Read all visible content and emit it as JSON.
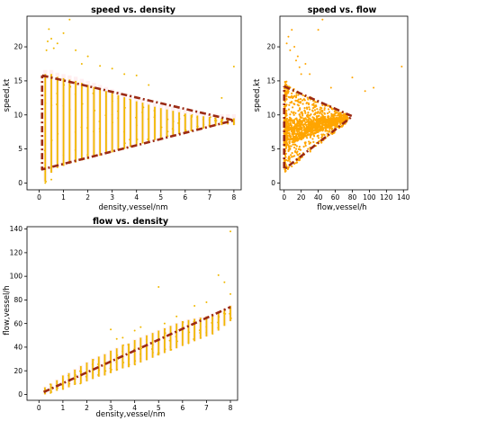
{
  "colors": {
    "points": "#f0b800",
    "points_fill": "#ffa500",
    "envelope": "#9b2a14",
    "halo": "#ffd0d8",
    "axis": "#000000"
  },
  "chart_data": [
    {
      "type": "scatter",
      "title": "speed vs. density",
      "xlabel": "density,vessel/nm",
      "ylabel": "speed,kt",
      "xlim": [
        -0.5,
        8.3
      ],
      "ylim": [
        -1,
        24.5
      ],
      "xticks": [
        0,
        1,
        2,
        3,
        4,
        5,
        6,
        7,
        8
      ],
      "yticks": [
        0,
        5,
        10,
        15,
        20
      ],
      "grid": false,
      "series": [
        {
          "points_description": "Vertical columns of points at every 0.25 density step from 0.25 to 8; wide spread at low density, narrowing toward ~9 kt at density 8",
          "column_ranges": [
            {
              "x": 0.25,
              "ymin": 0.2,
              "ymax": 16
            },
            {
              "x": 0.5,
              "ymin": 1.5,
              "ymax": 16
            },
            {
              "x": 0.75,
              "ymin": 2.2,
              "ymax": 15.6
            },
            {
              "x": 1,
              "ymin": 2.5,
              "ymax": 15.4
            },
            {
              "x": 1.25,
              "ymin": 2.8,
              "ymax": 15.2
            },
            {
              "x": 1.5,
              "ymin": 3,
              "ymax": 15
            },
            {
              "x": 1.75,
              "ymin": 3.3,
              "ymax": 14.7
            },
            {
              "x": 2,
              "ymin": 3.5,
              "ymax": 14.4
            },
            {
              "x": 2.25,
              "ymin": 3.8,
              "ymax": 14.1
            },
            {
              "x": 2.5,
              "ymin": 4,
              "ymax": 13.8
            },
            {
              "x": 2.75,
              "ymin": 4.3,
              "ymax": 13.5
            },
            {
              "x": 3,
              "ymin": 4.5,
              "ymax": 13.2
            },
            {
              "x": 3.25,
              "ymin": 4.8,
              "ymax": 12.9
            },
            {
              "x": 3.5,
              "ymin": 5,
              "ymax": 12.6
            },
            {
              "x": 3.75,
              "ymin": 5.3,
              "ymax": 12.3
            },
            {
              "x": 4,
              "ymin": 5.5,
              "ymax": 12
            },
            {
              "x": 4.25,
              "ymin": 5.8,
              "ymax": 11.8
            },
            {
              "x": 4.5,
              "ymin": 6,
              "ymax": 11.5
            },
            {
              "x": 4.75,
              "ymin": 6.3,
              "ymax": 11.2
            },
            {
              "x": 5,
              "ymin": 6.5,
              "ymax": 11
            },
            {
              "x": 5.25,
              "ymin": 6.8,
              "ymax": 10.8
            },
            {
              "x": 5.5,
              "ymin": 7,
              "ymax": 10.6
            },
            {
              "x": 5.75,
              "ymin": 7.2,
              "ymax": 10.4
            },
            {
              "x": 6,
              "ymin": 7.4,
              "ymax": 10.2
            },
            {
              "x": 6.25,
              "ymin": 7.6,
              "ymax": 10
            },
            {
              "x": 6.5,
              "ymin": 7.8,
              "ymax": 9.9
            },
            {
              "x": 6.75,
              "ymin": 8,
              "ymax": 9.8
            },
            {
              "x": 7,
              "ymin": 8.2,
              "ymax": 9.7
            },
            {
              "x": 7.25,
              "ymin": 8.4,
              "ymax": 9.6
            },
            {
              "x": 7.5,
              "ymin": 8.5,
              "ymax": 9.5
            },
            {
              "x": 7.75,
              "ymin": 8.6,
              "ymax": 9.5
            },
            {
              "x": 8,
              "ymin": 8.5,
              "ymax": 9.5
            }
          ],
          "outliers": [
            {
              "x": 0.3,
              "y": 19.5
            },
            {
              "x": 0.35,
              "y": 20.8
            },
            {
              "x": 0.4,
              "y": 22.6
            },
            {
              "x": 0.5,
              "y": 21.2
            },
            {
              "x": 0.6,
              "y": 19.8
            },
            {
              "x": 0.75,
              "y": 20.5
            },
            {
              "x": 1.0,
              "y": 22.0
            },
            {
              "x": 1.25,
              "y": 24.0
            },
            {
              "x": 1.5,
              "y": 19.5
            },
            {
              "x": 1.75,
              "y": 17.5
            },
            {
              "x": 2.0,
              "y": 18.6
            },
            {
              "x": 2.5,
              "y": 17.2
            },
            {
              "x": 3.0,
              "y": 16.8
            },
            {
              "x": 3.5,
              "y": 16.0
            },
            {
              "x": 4.0,
              "y": 15.8
            },
            {
              "x": 4.5,
              "y": 14.4
            },
            {
              "x": 7.5,
              "y": 12.5
            },
            {
              "x": 8.0,
              "y": 17.1
            },
            {
              "x": 0.25,
              "y": 0.0
            },
            {
              "x": 0.5,
              "y": 0.5
            }
          ]
        }
      ],
      "envelope": [
        {
          "x": 0.12,
          "y": 15.8
        },
        {
          "x": 8.0,
          "y": 9.2
        },
        {
          "x": 0.12,
          "y": 2.0
        },
        {
          "x": 0.12,
          "y": 15.8
        }
      ]
    },
    {
      "type": "scatter",
      "title": "speed vs. flow",
      "xlabel": "flow,vessel/h",
      "ylabel": "speed,kt",
      "xlim": [
        -5,
        145
      ],
      "ylim": [
        -1,
        24.5
      ],
      "xticks": [
        0,
        20,
        40,
        60,
        80,
        100,
        120,
        140
      ],
      "yticks": [
        0,
        5,
        10,
        15,
        20
      ],
      "grid": false,
      "series": [
        {
          "points_description": "Dense fan of points from origin; upper ray from ~(2,14) to (75,10), lower ray from (0,2) to (75,9); bulk concentrated at speed 7-10 kt, flow 10-60",
          "upper_ray": [
            {
              "x": 0,
              "y": 14.5
            },
            {
              "x": 75,
              "y": 10
            }
          ],
          "lower_ray": [
            {
              "x": 0,
              "y": 1.5
            },
            {
              "x": 75,
              "y": 9
            }
          ],
          "outliers": [
            {
              "x": 3,
              "y": 20.5
            },
            {
              "x": 5,
              "y": 21.5
            },
            {
              "x": 7,
              "y": 19.5
            },
            {
              "x": 9,
              "y": 22.5
            },
            {
              "x": 12,
              "y": 20.0
            },
            {
              "x": 14,
              "y": 18.0
            },
            {
              "x": 16,
              "y": 18.6
            },
            {
              "x": 18,
              "y": 17.0
            },
            {
              "x": 20,
              "y": 16.0
            },
            {
              "x": 25,
              "y": 17.5
            },
            {
              "x": 30,
              "y": 16.0
            },
            {
              "x": 40,
              "y": 22.5
            },
            {
              "x": 45,
              "y": 24.0
            },
            {
              "x": 55,
              "y": 14.0
            },
            {
              "x": 80,
              "y": 15.5
            },
            {
              "x": 95,
              "y": 13.5
            },
            {
              "x": 105,
              "y": 14.0
            },
            {
              "x": 138,
              "y": 17.1
            }
          ]
        }
      ],
      "envelope": [
        {
          "x": 0,
          "y": 14.2
        },
        {
          "x": 80,
          "y": 9.8
        },
        {
          "x": 0,
          "y": 2.0
        },
        {
          "x": 0,
          "y": 14.2
        }
      ]
    },
    {
      "type": "scatter",
      "title": "flow vs. density",
      "xlabel": "density,vessel/nm",
      "ylabel": "flow,vessel/h",
      "xlim": [
        -0.5,
        8.3
      ],
      "ylim": [
        -5,
        142
      ],
      "xticks": [
        0,
        1,
        2,
        3,
        4,
        5,
        6,
        7,
        8
      ],
      "yticks": [
        0,
        20,
        40,
        60,
        80,
        100,
        120,
        140
      ],
      "grid": false,
      "series": [
        {
          "points_description": "Vertical columns at every 0.25 density step; roughly linear trend flow ≈ 9 × density with spread widening at higher density",
          "column_ranges": [
            {
              "x": 0.25,
              "ymin": 0,
              "ymax": 6
            },
            {
              "x": 0.5,
              "ymin": 1,
              "ymax": 9
            },
            {
              "x": 0.75,
              "ymin": 3,
              "ymax": 12
            },
            {
              "x": 1,
              "ymin": 4,
              "ymax": 16
            },
            {
              "x": 1.25,
              "ymin": 6,
              "ymax": 18
            },
            {
              "x": 1.5,
              "ymin": 8,
              "ymax": 21
            },
            {
              "x": 1.75,
              "ymin": 9,
              "ymax": 24
            },
            {
              "x": 2,
              "ymin": 11,
              "ymax": 27
            },
            {
              "x": 2.25,
              "ymin": 13,
              "ymax": 30
            },
            {
              "x": 2.5,
              "ymin": 15,
              "ymax": 32
            },
            {
              "x": 2.75,
              "ymin": 16,
              "ymax": 34
            },
            {
              "x": 3,
              "ymin": 18,
              "ymax": 37
            },
            {
              "x": 3.25,
              "ymin": 20,
              "ymax": 39
            },
            {
              "x": 3.5,
              "ymin": 22,
              "ymax": 42
            },
            {
              "x": 3.75,
              "ymin": 23,
              "ymax": 43
            },
            {
              "x": 4,
              "ymin": 25,
              "ymax": 46
            },
            {
              "x": 4.25,
              "ymin": 27,
              "ymax": 48
            },
            {
              "x": 4.5,
              "ymin": 29,
              "ymax": 50
            },
            {
              "x": 4.75,
              "ymin": 31,
              "ymax": 52
            },
            {
              "x": 5,
              "ymin": 33,
              "ymax": 54
            },
            {
              "x": 5.25,
              "ymin": 35,
              "ymax": 56
            },
            {
              "x": 5.5,
              "ymin": 37,
              "ymax": 58
            },
            {
              "x": 5.75,
              "ymin": 39,
              "ymax": 60
            },
            {
              "x": 6,
              "ymin": 41,
              "ymax": 62
            },
            {
              "x": 6.25,
              "ymin": 43,
              "ymax": 63
            },
            {
              "x": 6.5,
              "ymin": 45,
              "ymax": 64
            },
            {
              "x": 6.75,
              "ymin": 47,
              "ymax": 65
            },
            {
              "x": 7,
              "ymin": 49,
              "ymax": 66
            },
            {
              "x": 7.25,
              "ymin": 51,
              "ymax": 68
            },
            {
              "x": 7.5,
              "ymin": 54,
              "ymax": 70
            },
            {
              "x": 7.75,
              "ymin": 58,
              "ymax": 72
            },
            {
              "x": 8,
              "ymin": 62,
              "ymax": 75
            }
          ],
          "outliers": [
            {
              "x": 3.0,
              "y": 55
            },
            {
              "x": 3.25,
              "y": 47
            },
            {
              "x": 3.5,
              "y": 48
            },
            {
              "x": 4.0,
              "y": 54
            },
            {
              "x": 4.25,
              "y": 57
            },
            {
              "x": 5.0,
              "y": 91
            },
            {
              "x": 5.25,
              "y": 60
            },
            {
              "x": 5.75,
              "y": 66
            },
            {
              "x": 7.5,
              "y": 101
            },
            {
              "x": 7.75,
              "y": 95
            },
            {
              "x": 8.0,
              "y": 85
            },
            {
              "x": 8.0,
              "y": 138
            },
            {
              "x": 6.5,
              "y": 75
            },
            {
              "x": 7.0,
              "y": 78
            }
          ]
        }
      ],
      "trend_line": [
        {
          "x": 0.2,
          "y": 2
        },
        {
          "x": 8.0,
          "y": 74
        }
      ]
    }
  ]
}
